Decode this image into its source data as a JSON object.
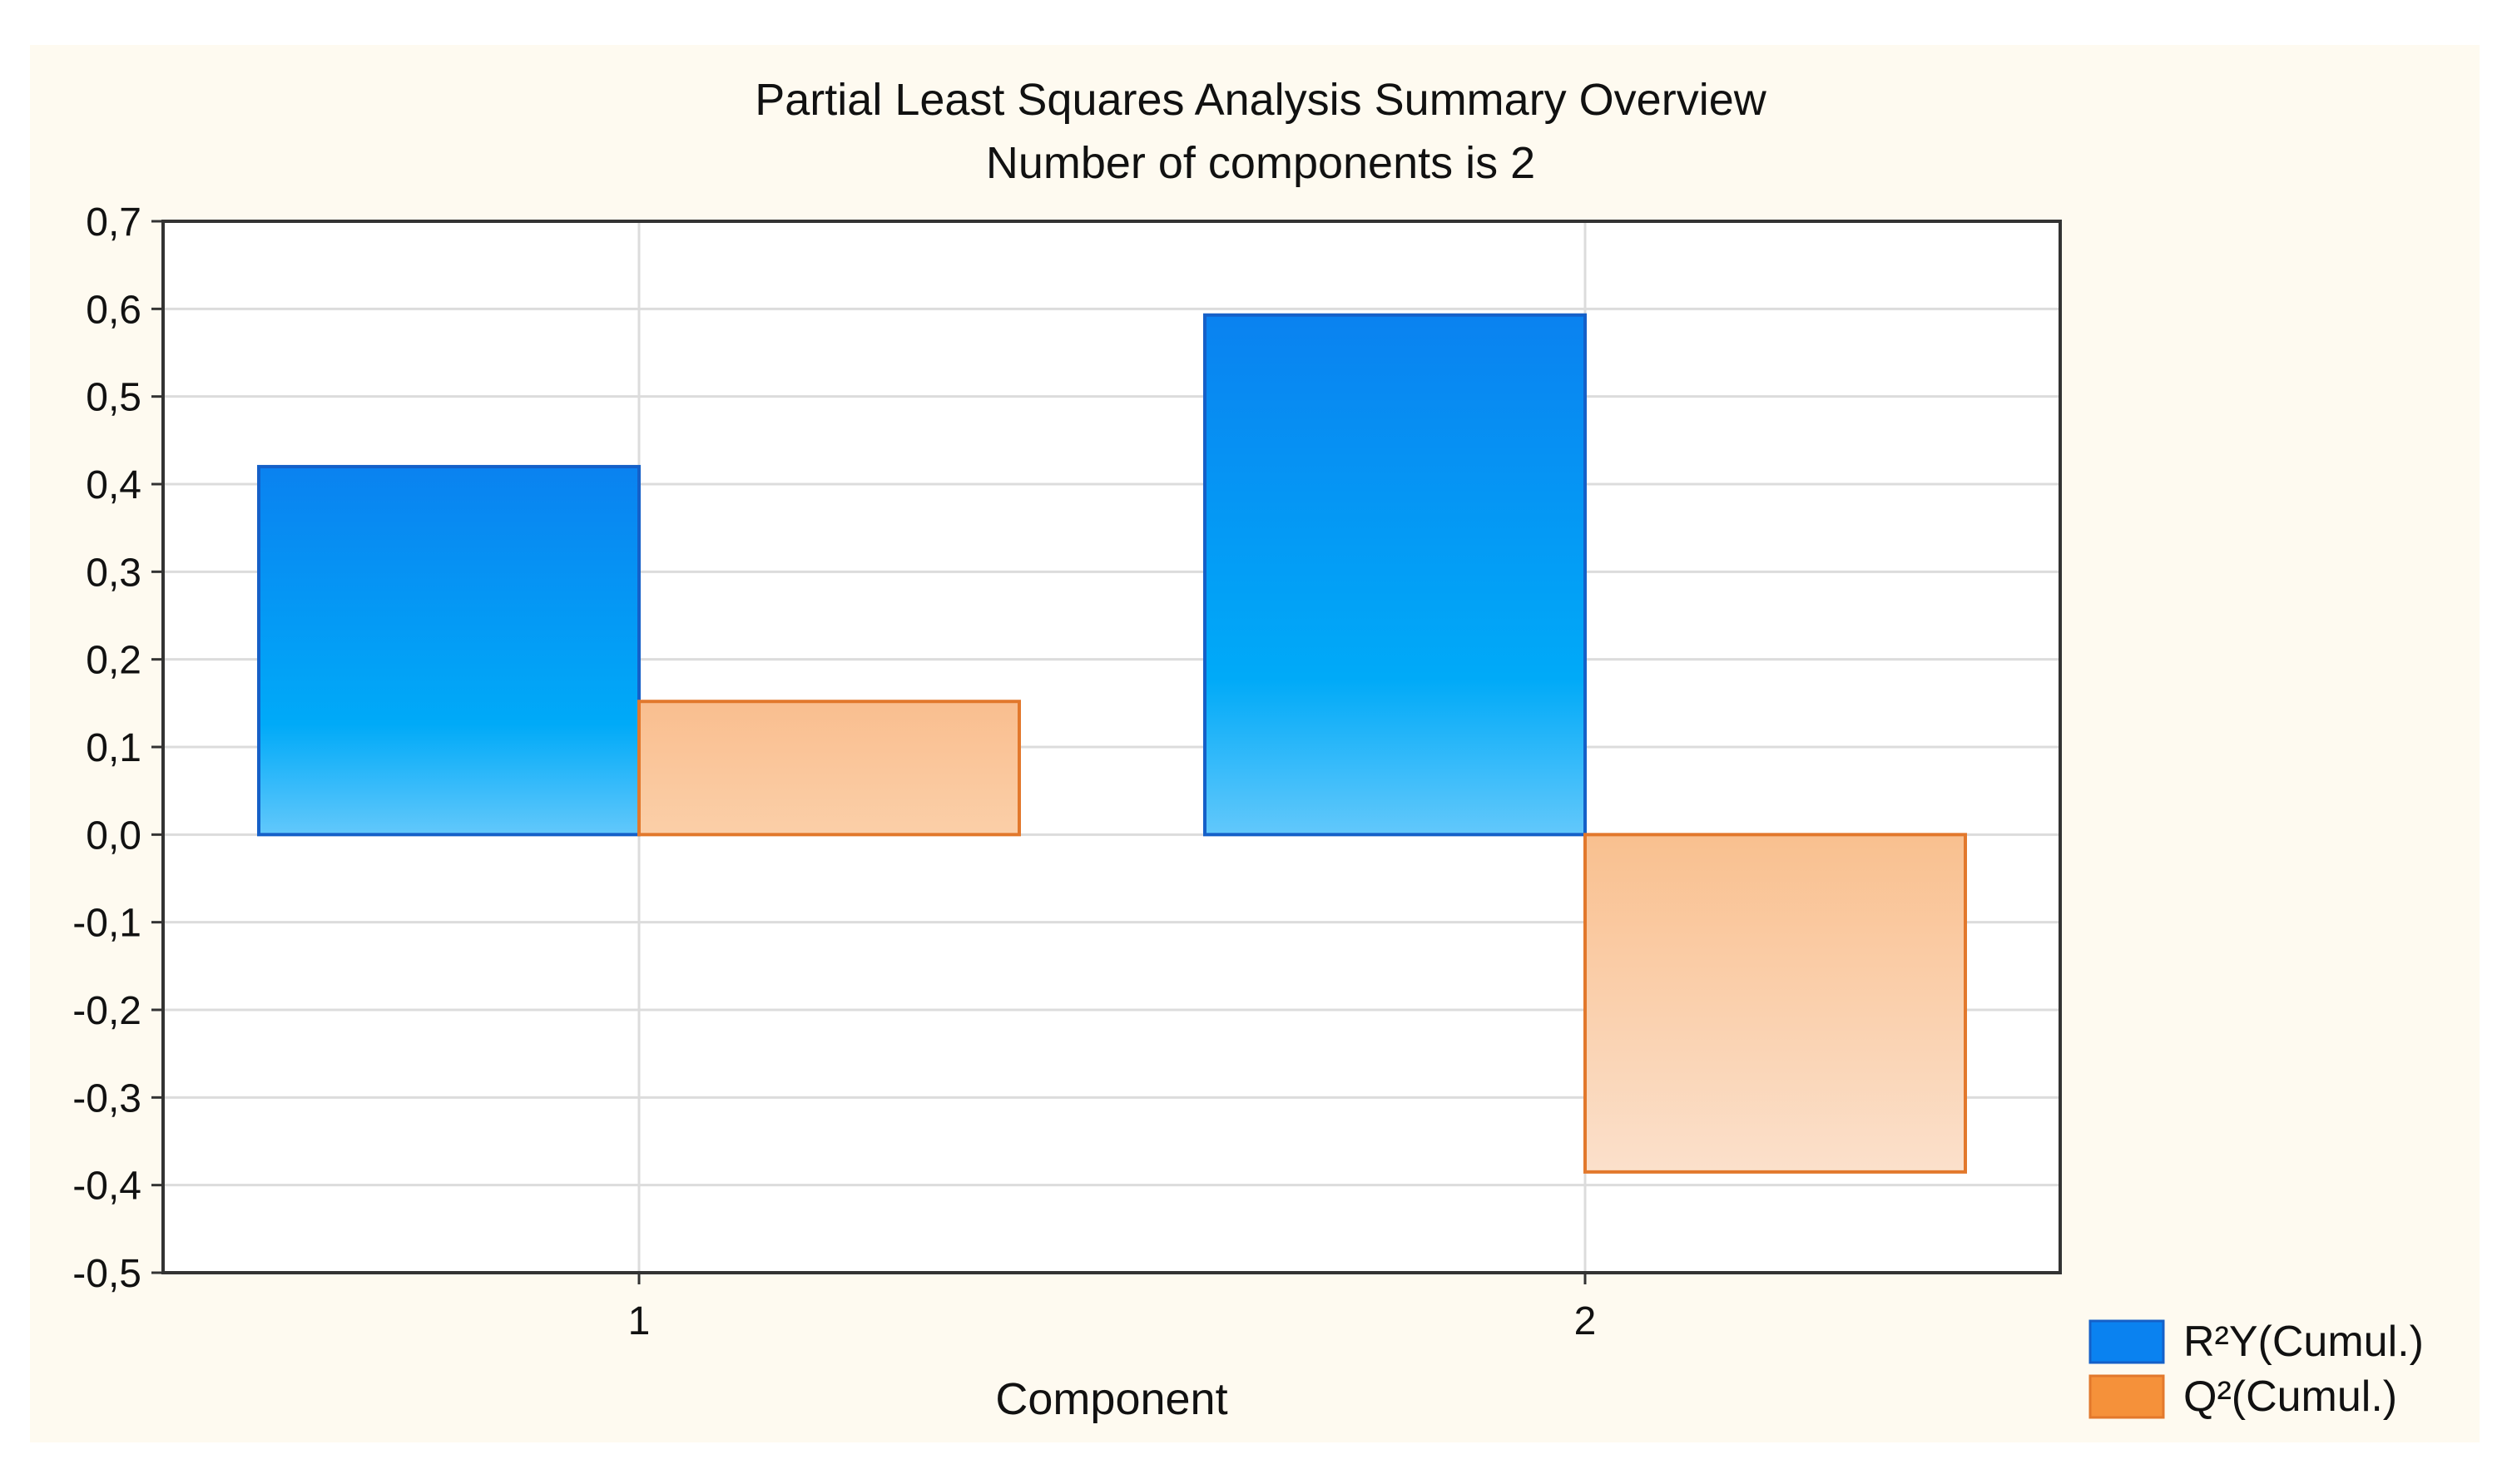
{
  "chart_data": {
    "type": "bar",
    "title": "Partial Least Squares Analysis Summary Overview",
    "subtitle": "Number of components is 2",
    "xlabel": "Component",
    "ylabel": "",
    "categories": [
      "1",
      "2"
    ],
    "series": [
      {
        "name": "R²Y(Cumul.)",
        "values": [
          0.42,
          0.593
        ],
        "color": "#0a8cf0"
      },
      {
        "name": "Q²(Cumul.)",
        "values": [
          0.152,
          -0.385
        ],
        "color": "#f5913a"
      }
    ],
    "ylim": [
      -0.5,
      0.7
    ],
    "yticks": [
      0.7,
      0.6,
      0.5,
      0.4,
      0.3,
      0.2,
      0.1,
      0.0,
      -0.1,
      -0.2,
      -0.3,
      -0.4,
      -0.5
    ],
    "ytick_labels": [
      "0,7",
      "0,6",
      "0,5",
      "0,4",
      "0,3",
      "0,2",
      "0,1",
      "0,0",
      "-0,1",
      "-0,2",
      "-0,3",
      "-0,4",
      "-0,5"
    ],
    "grid": true,
    "legend_position": "bottom-right",
    "background_color": "#fefaf0",
    "plot_background_color": "#ffffff"
  }
}
